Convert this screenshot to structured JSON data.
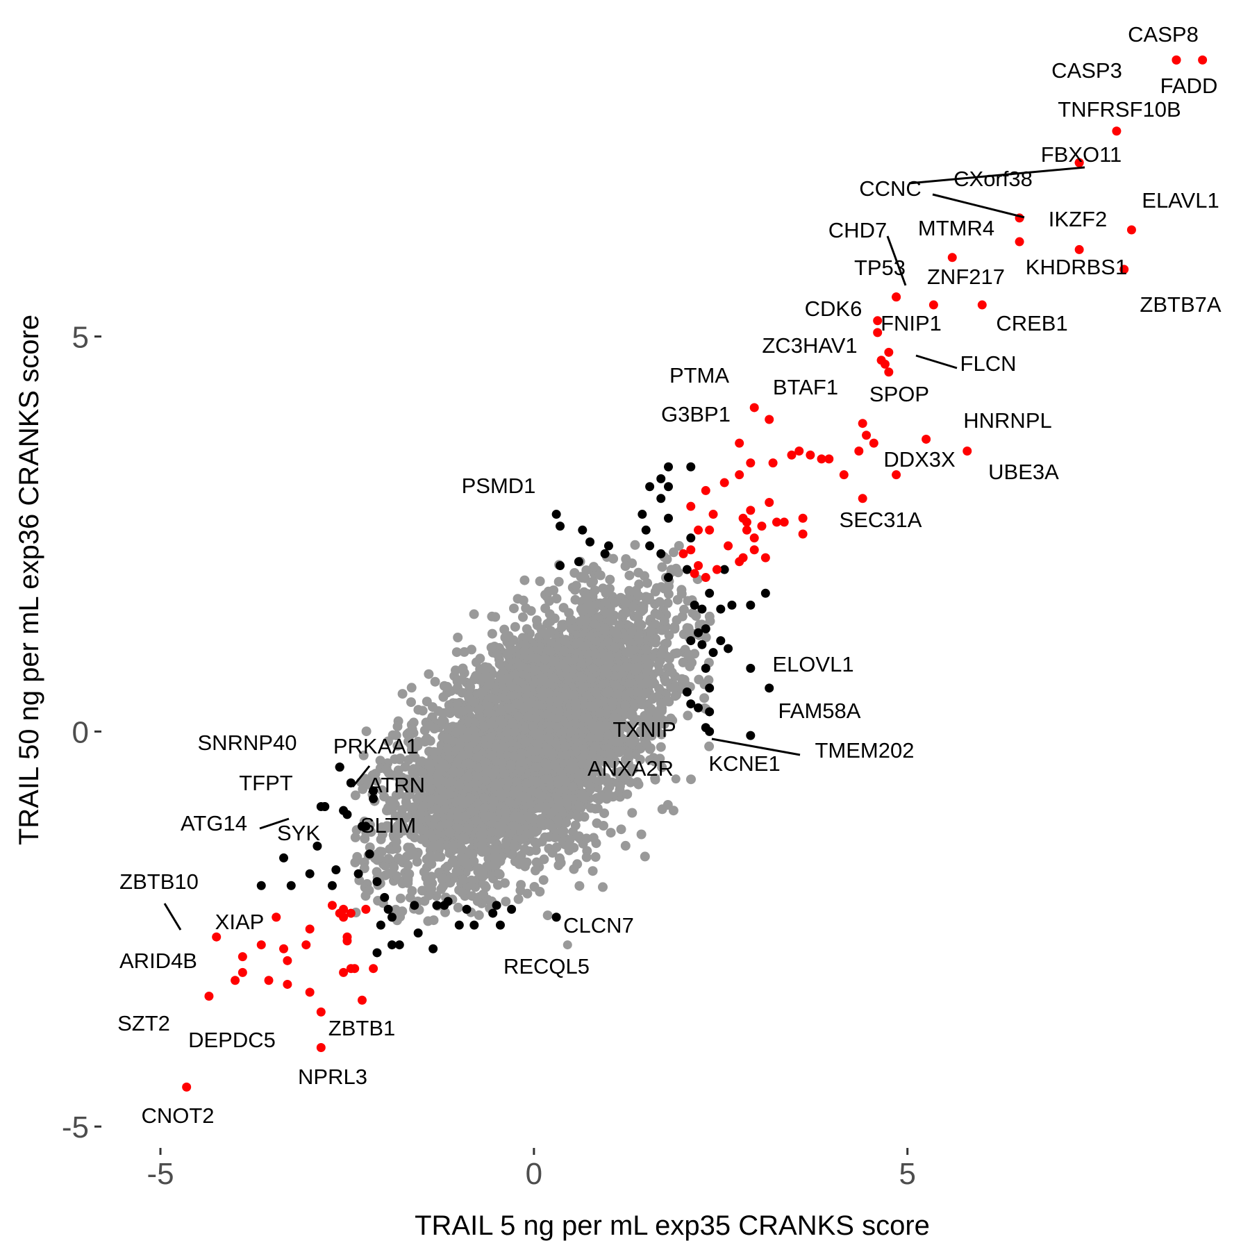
{
  "chart_data": {
    "type": "scatter",
    "xlabel": "TRAIL 5 ng per mL exp35 CRANKS score",
    "ylabel": "TRAIL 50 ng per mL exp36 CRANKS score",
    "xlim": [
      -5.4,
      9.0
    ],
    "ylim": [
      -5.2,
      8.6
    ],
    "x_ticks": [
      -5,
      0,
      5
    ],
    "y_ticks": [
      -5,
      0,
      5
    ],
    "tick_labels": {
      "x": [
        "-5",
        "0",
        "5"
      ],
      "y": [
        "-5",
        "0",
        "5"
      ]
    },
    "grid": false,
    "legend": "none",
    "colors": {
      "background": "#ffffff",
      "significant_both": "#ff0000",
      "significant_one": "#000000",
      "not_significant": "#999999",
      "tick_text": "#4d4d4d"
    },
    "background_cloud": {
      "description": "thousands of grey (not significant) points, roughly normal",
      "color": "#999999",
      "center": [
        0.0,
        -0.1
      ],
      "sd": [
        0.9,
        0.85
      ],
      "correlation": 0.6,
      "n": 5000
    },
    "labeled_points": [
      {
        "gene": "CASP8",
        "x": 8.6,
        "y": 8.5,
        "color": "red"
      },
      {
        "gene": "FADD",
        "x": 8.95,
        "y": 8.5,
        "color": "red"
      },
      {
        "gene": "CASP3",
        "x": 8.6,
        "y": 8.5,
        "color": "red"
      },
      {
        "gene": "TNFRSF10B",
        "x": 7.8,
        "y": 7.6,
        "color": "red"
      },
      {
        "gene": "FBXO11",
        "x": 7.3,
        "y": 7.2,
        "color": "red"
      },
      {
        "gene": "CXorf38",
        "x": 7.3,
        "y": 7.2,
        "color": "red"
      },
      {
        "gene": "CCNC",
        "x": 6.5,
        "y": 6.5,
        "color": "red"
      },
      {
        "gene": "IKZF2",
        "x": 6.5,
        "y": 6.2,
        "color": "red"
      },
      {
        "gene": "ELAVL1",
        "x": 8.0,
        "y": 6.35,
        "color": "red"
      },
      {
        "gene": "MTMR4",
        "x": 5.6,
        "y": 6.0,
        "color": "red"
      },
      {
        "gene": "KHDRBS1",
        "x": 7.3,
        "y": 6.1,
        "color": "red"
      },
      {
        "gene": "ZBTB7A",
        "x": 7.9,
        "y": 5.85,
        "color": "red"
      },
      {
        "gene": "CHD7",
        "x": 4.85,
        "y": 5.5,
        "color": "red"
      },
      {
        "gene": "TP53",
        "x": 4.85,
        "y": 5.5,
        "color": "red"
      },
      {
        "gene": "ZNF217",
        "x": 5.35,
        "y": 5.4,
        "color": "red"
      },
      {
        "gene": "CREB1",
        "x": 6.0,
        "y": 5.4,
        "color": "red"
      },
      {
        "gene": "CDK6",
        "x": 4.6,
        "y": 5.2,
        "color": "red"
      },
      {
        "gene": "FNIP1",
        "x": 4.6,
        "y": 5.05,
        "color": "red"
      },
      {
        "gene": "ZC3HAV1",
        "x": 4.65,
        "y": 4.7,
        "color": "red"
      },
      {
        "gene": "FLCN",
        "x": 4.75,
        "y": 4.8,
        "color": "red"
      },
      {
        "gene": "PTMA",
        "x": 2.95,
        "y": 4.1,
        "color": "red"
      },
      {
        "gene": "BTAF1",
        "x": 3.15,
        "y": 3.95,
        "color": "red"
      },
      {
        "gene": "SPOP",
        "x": 4.4,
        "y": 3.9,
        "color": "red"
      },
      {
        "gene": "G3BP1",
        "x": 2.75,
        "y": 3.65,
        "color": "red"
      },
      {
        "gene": "HNRNPL",
        "x": 5.25,
        "y": 3.7,
        "color": "red"
      },
      {
        "gene": "DDX3X",
        "x": 4.85,
        "y": 3.25,
        "color": "red"
      },
      {
        "gene": "UBE3A",
        "x": 5.8,
        "y": 3.55,
        "color": "red"
      },
      {
        "gene": "SEC31A",
        "x": 3.6,
        "y": 2.5,
        "color": "red"
      },
      {
        "gene": "PSMD1",
        "x": 0.3,
        "y": 2.75,
        "color": "black"
      },
      {
        "gene": "ELOVL1",
        "x": 2.9,
        "y": 0.8,
        "color": "black"
      },
      {
        "gene": "FAM58A",
        "x": 3.15,
        "y": 0.55,
        "color": "black"
      },
      {
        "gene": "TXNIP",
        "x": 2.3,
        "y": 0.05,
        "color": "black"
      },
      {
        "gene": "KCNE1",
        "x": 2.9,
        "y": -0.05,
        "color": "black"
      },
      {
        "gene": "TMEM202",
        "x": 2.35,
        "y": 0.0,
        "color": "black"
      },
      {
        "gene": "ANXA2R",
        "x": 1.9,
        "y": -0.6,
        "color": "grey"
      },
      {
        "gene": "SNRNP40",
        "x": -2.6,
        "y": -0.45,
        "color": "black"
      },
      {
        "gene": "PRKAA1",
        "x": -2.15,
        "y": -0.75,
        "color": "black"
      },
      {
        "gene": "ATRN",
        "x": -2.15,
        "y": -0.85,
        "color": "black"
      },
      {
        "gene": "TFPT",
        "x": -2.8,
        "y": -0.95,
        "color": "black"
      },
      {
        "gene": "ATG14",
        "x": -2.8,
        "y": -0.95,
        "color": "black"
      },
      {
        "gene": "SLTM",
        "x": -2.25,
        "y": -1.2,
        "color": "black"
      },
      {
        "gene": "SYK",
        "x": -2.55,
        "y": -1.0,
        "color": "black"
      },
      {
        "gene": "ZBTB10",
        "x": -4.25,
        "y": -2.6,
        "color": "red"
      },
      {
        "gene": "XIAP",
        "x": -3.65,
        "y": -2.7,
        "color": "red"
      },
      {
        "gene": "ARID4B",
        "x": -3.9,
        "y": -3.05,
        "color": "red"
      },
      {
        "gene": "SZT2",
        "x": -4.35,
        "y": -3.35,
        "color": "red"
      },
      {
        "gene": "DEPDC5",
        "x": -2.85,
        "y": -3.55,
        "color": "red"
      },
      {
        "gene": "NPRL3",
        "x": -2.85,
        "y": -4.0,
        "color": "red"
      },
      {
        "gene": "ZBTB1",
        "x": -2.3,
        "y": -3.4,
        "color": "red"
      },
      {
        "gene": "CNOT2",
        "x": -4.65,
        "y": -4.5,
        "color": "red"
      },
      {
        "gene": "CLCN7",
        "x": 0.3,
        "y": -2.35,
        "color": "black"
      },
      {
        "gene": "RECQL5",
        "x": 0.45,
        "y": -2.7,
        "color": "grey"
      }
    ],
    "extra_red_points": [
      [
        4.75,
        4.55
      ],
      [
        4.7,
        4.65
      ],
      [
        4.45,
        3.75
      ],
      [
        4.55,
        3.65
      ],
      [
        4.35,
        3.55
      ],
      [
        4.15,
        3.25
      ],
      [
        3.45,
        3.5
      ],
      [
        3.55,
        3.55
      ],
      [
        3.7,
        3.5
      ],
      [
        3.85,
        3.45
      ],
      [
        3.95,
        3.45
      ],
      [
        3.2,
        3.4
      ],
      [
        2.9,
        3.4
      ],
      [
        2.55,
        3.15
      ],
      [
        2.75,
        3.25
      ],
      [
        2.3,
        3.05
      ],
      [
        2.1,
        2.85
      ],
      [
        2.2,
        2.55
      ],
      [
        2.4,
        2.75
      ],
      [
        2.35,
        2.55
      ],
      [
        2.8,
        2.7
      ],
      [
        2.9,
        2.8
      ],
      [
        3.15,
        2.9
      ],
      [
        2.85,
        2.55
      ],
      [
        3.05,
        2.6
      ],
      [
        3.25,
        2.65
      ],
      [
        3.35,
        2.65
      ],
      [
        4.4,
        2.95
      ],
      [
        2.1,
        2.3
      ],
      [
        2.2,
        2.1
      ],
      [
        2.45,
        2.05
      ],
      [
        2.8,
        2.2
      ],
      [
        2.95,
        2.45
      ],
      [
        2.6,
        2.35
      ],
      [
        2.15,
        2.0
      ],
      [
        2.3,
        1.95
      ],
      [
        2.0,
        2.25
      ],
      [
        3.1,
        2.2
      ],
      [
        2.95,
        2.3
      ],
      [
        2.75,
        2.15
      ],
      [
        2.85,
        2.65
      ],
      [
        3.6,
        2.7
      ],
      [
        -3.45,
        -2.35
      ],
      [
        -2.7,
        -2.2
      ],
      [
        -2.55,
        -2.25
      ],
      [
        -2.45,
        -2.3
      ],
      [
        -2.6,
        -2.3
      ],
      [
        -2.25,
        -2.25
      ],
      [
        -2.55,
        -2.35
      ],
      [
        -3.0,
        -2.5
      ],
      [
        -3.05,
        -2.7
      ],
      [
        -3.35,
        -2.75
      ],
      [
        -2.5,
        -2.65
      ],
      [
        -2.5,
        -2.6
      ],
      [
        -4.0,
        -3.15
      ],
      [
        -3.55,
        -3.15
      ],
      [
        -3.3,
        -3.2
      ],
      [
        -3.0,
        -3.3
      ],
      [
        -2.45,
        -3.0
      ],
      [
        -2.4,
        -3.0
      ],
      [
        -3.9,
        -2.85
      ],
      [
        -2.15,
        -3.0
      ],
      [
        -2.55,
        -3.05
      ],
      [
        -3.3,
        -2.9
      ]
    ],
    "extra_black_points": [
      [
        1.8,
        3.35
      ],
      [
        1.7,
        3.2
      ],
      [
        1.8,
        3.1
      ],
      [
        2.1,
        3.35
      ],
      [
        1.55,
        3.1
      ],
      [
        1.7,
        2.95
      ],
      [
        1.45,
        2.75
      ],
      [
        1.8,
        2.7
      ],
      [
        0.35,
        2.6
      ],
      [
        0.65,
        2.55
      ],
      [
        1.5,
        2.55
      ],
      [
        2.1,
        2.45
      ],
      [
        0.75,
        2.4
      ],
      [
        1.55,
        2.35
      ],
      [
        1.0,
        2.35
      ],
      [
        0.95,
        2.25
      ],
      [
        0.35,
        2.1
      ],
      [
        0.6,
        2.15
      ],
      [
        1.7,
        2.25
      ],
      [
        2.05,
        2.05
      ],
      [
        1.8,
        1.95
      ],
      [
        2.55,
        2.05
      ],
      [
        2.35,
        1.75
      ],
      [
        3.1,
        1.75
      ],
      [
        2.9,
        1.6
      ],
      [
        2.15,
        1.6
      ],
      [
        2.25,
        1.55
      ],
      [
        2.5,
        1.55
      ],
      [
        2.65,
        1.6
      ],
      [
        2.2,
        1.25
      ],
      [
        2.3,
        1.3
      ],
      [
        2.5,
        1.15
      ],
      [
        2.6,
        1.05
      ],
      [
        2.4,
        1.0
      ],
      [
        2.25,
        1.1
      ],
      [
        2.1,
        1.15
      ],
      [
        2.3,
        0.8
      ],
      [
        2.35,
        0.55
      ],
      [
        2.05,
        0.5
      ],
      [
        2.2,
        0.3
      ],
      [
        2.1,
        0.35
      ],
      [
        2.35,
        0.25
      ],
      [
        -2.6,
        -0.45
      ],
      [
        -2.45,
        -0.65
      ],
      [
        -2.85,
        -0.95
      ],
      [
        -2.5,
        -1.05
      ],
      [
        -2.3,
        -1.2
      ],
      [
        -3.35,
        -1.6
      ],
      [
        -2.9,
        -1.45
      ],
      [
        -2.65,
        -1.75
      ],
      [
        -3.65,
        -1.95
      ],
      [
        -3.25,
        -1.95
      ],
      [
        -3.0,
        -1.8
      ],
      [
        -2.7,
        -1.95
      ],
      [
        -2.35,
        -1.8
      ],
      [
        -2.1,
        -1.9
      ],
      [
        -2.2,
        -1.55
      ],
      [
        -2.0,
        -2.1
      ],
      [
        -1.95,
        -2.25
      ],
      [
        -1.6,
        -2.2
      ],
      [
        -1.3,
        -2.2
      ],
      [
        -1.15,
        -2.15
      ],
      [
        -0.9,
        -2.25
      ],
      [
        -0.55,
        -2.3
      ],
      [
        -0.5,
        -2.2
      ],
      [
        -0.3,
        -2.25
      ],
      [
        -0.45,
        -2.45
      ],
      [
        -0.8,
        -2.45
      ],
      [
        -1.0,
        -2.45
      ],
      [
        -1.9,
        -2.35
      ],
      [
        -2.05,
        -2.45
      ],
      [
        -1.9,
        -2.7
      ],
      [
        -1.8,
        -2.7
      ],
      [
        -1.35,
        -2.75
      ],
      [
        -1.55,
        -2.55
      ],
      [
        -2.1,
        -2.8
      ],
      [
        -1.2,
        -2.2
      ]
    ],
    "labels": {
      "CASP8": "CASP8",
      "FADD": "FADD",
      "CASP3": "CASP3",
      "TNFRSF10B": "TNFRSF10B",
      "FBXO11": "FBXO11",
      "CXorf38": "CXorf38",
      "CCNC": "CCNC",
      "IKZF2": "IKZF2",
      "ELAVL1": "ELAVL1",
      "MTMR4": "MTMR4",
      "KHDRBS1": "KHDRBS1",
      "ZBTB7A": "ZBTB7A",
      "CHD7": "CHD7",
      "TP53": "TP53",
      "ZNF217": "ZNF217",
      "CREB1": "CREB1",
      "CDK6": "CDK6",
      "FNIP1": "FNIP1",
      "ZC3HAV1": "ZC3HAV1",
      "FLCN": "FLCN",
      "PTMA": "PTMA",
      "BTAF1": "BTAF1",
      "SPOP": "SPOP",
      "G3BP1": "G3BP1",
      "HNRNPL": "HNRNPL",
      "DDX3X": "DDX3X",
      "UBE3A": "UBE3A",
      "SEC31A": "SEC31A",
      "PSMD1": "PSMD1",
      "ELOVL1": "ELOVL1",
      "FAM58A": "FAM58A",
      "TXNIP": "TXNIP",
      "KCNE1": "KCNE1",
      "TMEM202": "TMEM202",
      "ANXA2R": "ANXA2R",
      "SNRNP40": "SNRNP40",
      "PRKAA1": "PRKAA1",
      "ATRN": "ATRN",
      "TFPT": "TFPT",
      "ATG14": "ATG14",
      "SLTM": "SLTM",
      "SYK": "SYK",
      "ZBTB10": "ZBTB10",
      "XIAP": "XIAP",
      "ARID4B": "ARID4B",
      "SZT2": "SZT2",
      "DEPDC5": "DEPDC5",
      "NPRL3": "NPRL3",
      "ZBTB1": "ZBTB1",
      "CNOT2": "CNOT2",
      "CLCN7": "CLCN7",
      "RECQL5": "RECQL5"
    }
  }
}
